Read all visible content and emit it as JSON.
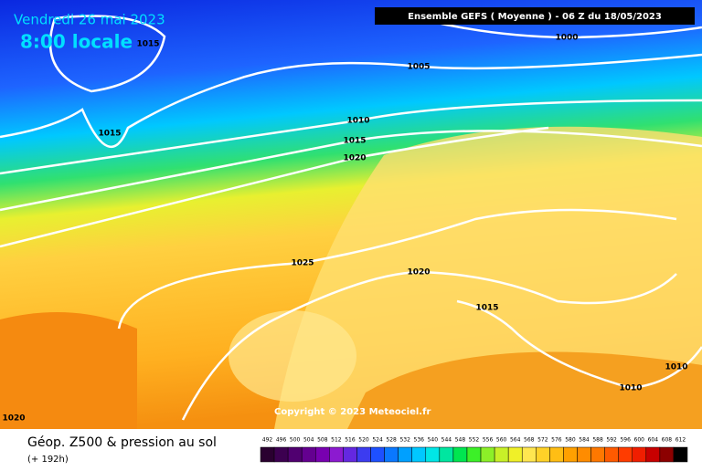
{
  "header": {
    "date": "Vendredi 26 mai 2023",
    "time": "8:00 locale",
    "run": "Ensemble GEFS  ( Moyenne )  -  06 Z du 18/05/2023"
  },
  "isobars": [
    1015,
    1015,
    1000,
    1005,
    1010,
    1015,
    1020,
    1025,
    1020,
    1015,
    1010,
    1010,
    1020
  ],
  "copyright": "Copyright © 2023 Meteociel.fr",
  "footer": {
    "title": "Géop. Z500 & pression au sol",
    "subtitle": "(+ 192h)"
  },
  "legend": {
    "ticks": [
      492,
      496,
      500,
      504,
      508,
      512,
      516,
      520,
      524,
      528,
      532,
      536,
      540,
      544,
      548,
      552,
      556,
      560,
      564,
      568,
      572,
      576,
      580,
      584,
      588,
      592,
      596,
      600,
      604,
      608,
      612
    ],
    "colors": [
      "#2a0030",
      "#3c0050",
      "#500070",
      "#640090",
      "#7800b0",
      "#8c1ad0",
      "#6428e0",
      "#3c3cf0",
      "#1e50ff",
      "#0a78ff",
      "#00a0ff",
      "#00c8ff",
      "#00e6e6",
      "#00e6a0",
      "#00e650",
      "#3cf028",
      "#8cf028",
      "#c8f028",
      "#f0f028",
      "#ffe650",
      "#ffd228",
      "#ffbe14",
      "#ffa000",
      "#ff8c00",
      "#ff7800",
      "#ff5a00",
      "#ff3c00",
      "#f01e00",
      "#c80000",
      "#8c0000",
      "#000000"
    ]
  }
}
